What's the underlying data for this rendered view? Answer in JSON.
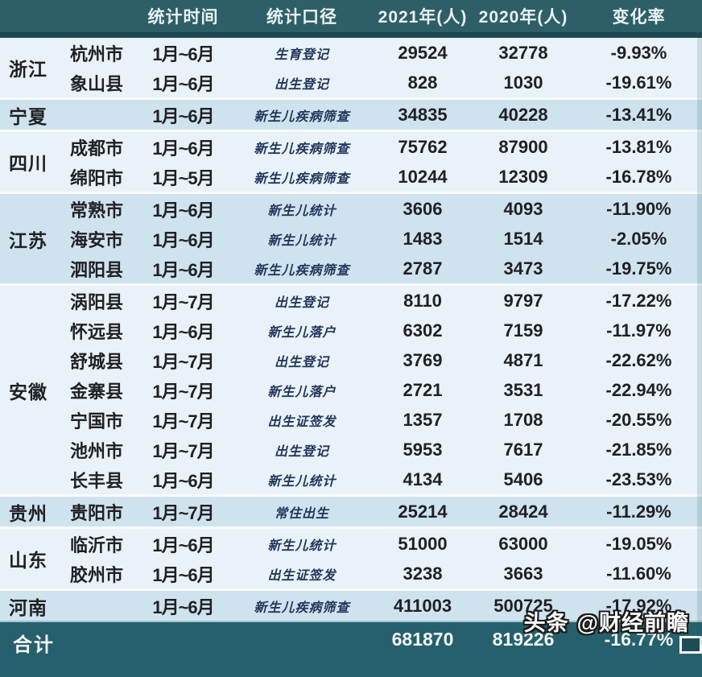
{
  "chart_data": {
    "type": "table",
    "title": "",
    "columns": [
      "",
      "",
      "统计时间",
      "统计口径",
      "2021年(人)",
      "2020年(人)",
      "变化率"
    ],
    "rows": [
      [
        "浙江",
        "杭州市",
        "1月~6月",
        "生育登记",
        29524,
        32778,
        "-9.93%"
      ],
      [
        "浙江",
        "象山县",
        "1月~6月",
        "出生登记",
        828,
        1030,
        "-19.61%"
      ],
      [
        "宁夏",
        "",
        "1月~6月",
        "新生儿疾病筛查",
        34835,
        40228,
        "-13.41%"
      ],
      [
        "四川",
        "成都市",
        "1月~6月",
        "新生儿疾病筛查",
        75762,
        87900,
        "-13.81%"
      ],
      [
        "四川",
        "绵阳市",
        "1月~5月",
        "新生儿疾病筛查",
        10244,
        12309,
        "-16.78%"
      ],
      [
        "江苏",
        "常熟市",
        "1月~6月",
        "新生儿统计",
        3606,
        4093,
        "-11.90%"
      ],
      [
        "江苏",
        "海安市",
        "1月~6月",
        "新生儿统计",
        1483,
        1514,
        "-2.05%"
      ],
      [
        "江苏",
        "泗阳县",
        "1月~6月",
        "新生儿疾病筛查",
        2787,
        3473,
        "-19.75%"
      ],
      [
        "安徽",
        "涡阳县",
        "1月~7月",
        "出生登记",
        8110,
        9797,
        "-17.22%"
      ],
      [
        "安徽",
        "怀远县",
        "1月~6月",
        "新生儿落户",
        6302,
        7159,
        "-11.97%"
      ],
      [
        "安徽",
        "舒城县",
        "1月~7月",
        "出生登记",
        3769,
        4871,
        "-22.62%"
      ],
      [
        "安徽",
        "金寨县",
        "1月~7月",
        "新生儿落户",
        2721,
        3531,
        "-22.94%"
      ],
      [
        "安徽",
        "宁国市",
        "1月~7月",
        "出生证签发",
        1357,
        1708,
        "-20.55%"
      ],
      [
        "安徽",
        "池州市",
        "1月~7月",
        "出生登记",
        5953,
        7617,
        "-21.85%"
      ],
      [
        "安徽",
        "长丰县",
        "1月~6月",
        "新生儿统计",
        4134,
        5406,
        "-23.53%"
      ],
      [
        "贵州",
        "贵阳市",
        "1月~7月",
        "常住出生",
        25214,
        28424,
        "-11.29%"
      ],
      [
        "山东",
        "临沂市",
        "1月~6月",
        "新生儿统计",
        51000,
        63000,
        "-19.05%"
      ],
      [
        "山东",
        "胶州市",
        "1月~6月",
        "出生证签发",
        3238,
        3663,
        "-11.60%"
      ],
      [
        "河南",
        "",
        "1月~6月",
        "新生儿疾病筛查",
        411003,
        500725,
        "-17.92%"
      ]
    ],
    "total_row": {
      "label": "合计",
      "y2021": 681870,
      "y2020": 819226,
      "rate": "-16.77%"
    },
    "layout": {
      "group_shading": [
        "light",
        "medium"
      ],
      "grid": "off",
      "legend": "none"
    }
  },
  "watermark": {
    "brand": "头条",
    "handle": "@财经前瞻"
  },
  "colors": {
    "header_bg": "#2e5f68",
    "header_band": "#1e4953",
    "footer_bg": "#26606c",
    "row_light": "#e9f2f8",
    "row_medium": "#cfe3ee",
    "separator": "#f7fbfd",
    "text": "#202124",
    "caliber_text": "#22365c",
    "header_text": "#eaf2f3"
  }
}
